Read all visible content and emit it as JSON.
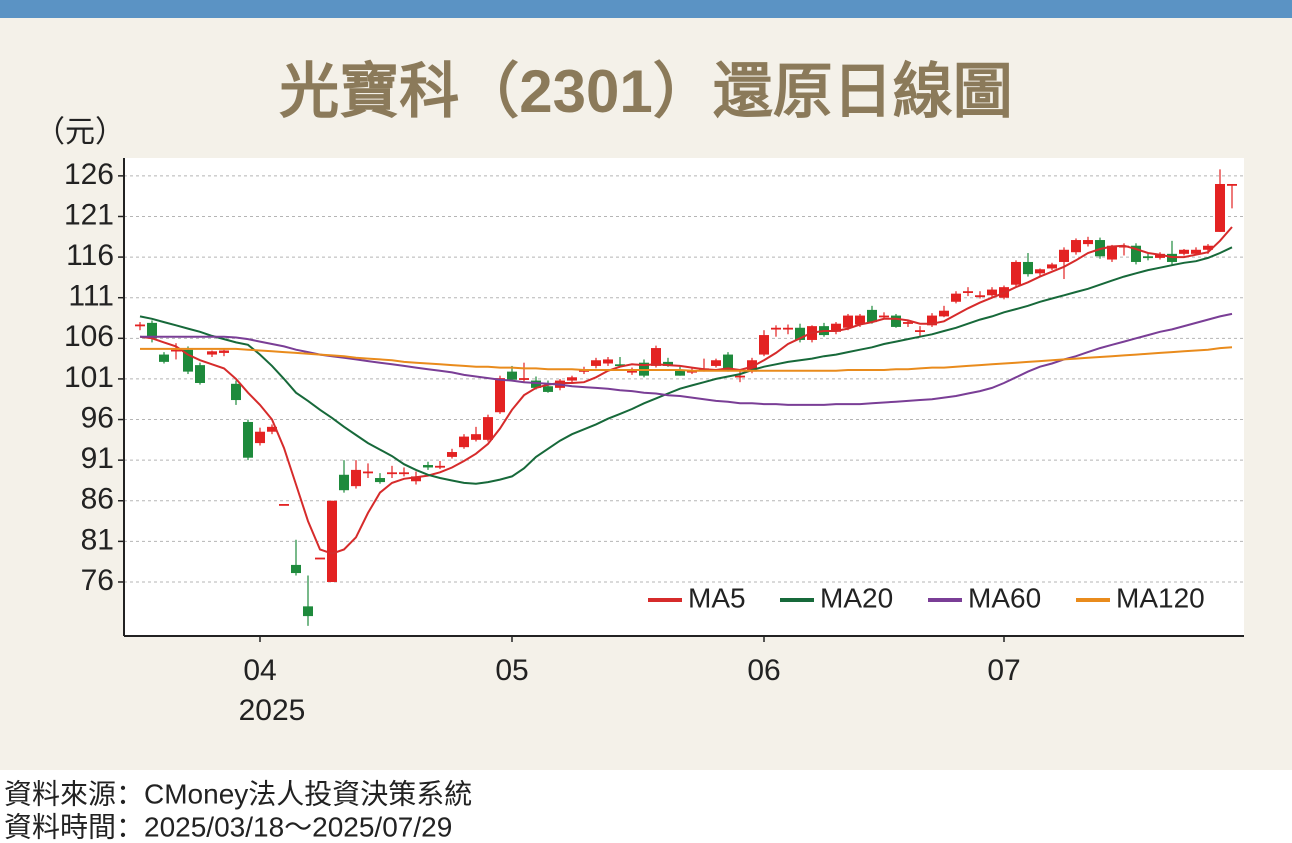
{
  "chart_data": {
    "type": "candlestick",
    "title": "光寶科（2301）還原日線圖",
    "y_label": "（元）",
    "year_label": "2025",
    "source": "資料來源：CMoney法人投資決策系統",
    "period": "資料時間：2025/03/18～2025/07/29",
    "categories": [
      null,
      null,
      null,
      null,
      null,
      null,
      null,
      null,
      null,
      null,
      "04",
      null,
      null,
      null,
      null,
      null,
      null,
      null,
      null,
      null,
      null,
      null,
      null,
      null,
      null,
      null,
      null,
      null,
      null,
      null,
      null,
      "05",
      null,
      null,
      null,
      null,
      null,
      null,
      null,
      null,
      null,
      null,
      null,
      null,
      null,
      null,
      null,
      null,
      null,
      null,
      null,
      null,
      "06",
      null,
      null,
      null,
      null,
      null,
      null,
      null,
      null,
      null,
      null,
      null,
      null,
      null,
      null,
      null,
      null,
      null,
      null,
      null,
      "07",
      null,
      null,
      null,
      null,
      null,
      null,
      null,
      null,
      null,
      null,
      null,
      null,
      null,
      null,
      null,
      null,
      null,
      null,
      null
    ],
    "open": [
      107.5,
      107.9,
      104.0,
      104.5,
      104.6,
      102.7,
      104.0,
      104.2,
      100.4,
      95.7,
      93.1,
      94.5,
      85.6,
      78.1,
      73.0,
      79.0,
      76.0,
      89.2,
      87.8,
      89.6,
      88.8,
      89.5,
      89.4,
      88.4,
      90.4,
      90.3,
      91.4,
      92.6,
      93.5,
      93.5,
      96.9,
      101.9,
      101.1,
      100.8,
      100.1,
      99.9,
      100.8,
      102.0,
      102.6,
      102.9,
      102.8,
      102.0,
      103.0,
      102.6,
      103.1,
      102.1,
      102.0,
      102.2,
      102.6,
      104.0,
      101.4,
      101.9,
      104.0,
      107.3,
      107.3,
      107.3,
      105.8,
      107.5,
      106.8,
      107.3,
      107.7,
      109.5,
      108.8,
      108.8,
      107.9,
      106.9,
      107.6,
      108.7,
      110.5,
      111.7,
      111.2,
      111.3,
      111.0,
      112.6,
      115.4,
      114.0,
      114.6,
      115.4,
      116.6,
      117.6,
      118.1,
      115.7,
      117.4,
      117.4,
      116.1,
      115.9,
      116.4,
      116.4,
      116.4,
      116.9,
      119.1,
      125.0
    ],
    "high": [
      108.0,
      108.2,
      104.3,
      105.4,
      105.0,
      103.0,
      104.5,
      104.6,
      100.8,
      96.0,
      95.0,
      95.4,
      85.6,
      81.2,
      76.8,
      79.0,
      86.0,
      91.0,
      91.0,
      90.6,
      89.4,
      90.3,
      90.1,
      89.6,
      90.8,
      90.9,
      92.4,
      94.2,
      95.1,
      96.6,
      101.4,
      102.6,
      103.0,
      101.3,
      100.8,
      101.0,
      101.4,
      102.5,
      103.6,
      103.7,
      103.7,
      102.4,
      103.4,
      105.1,
      103.6,
      102.5,
      102.4,
      103.5,
      103.5,
      104.3,
      102.2,
      103.6,
      107.0,
      107.6,
      107.7,
      107.8,
      107.6,
      107.9,
      108.0,
      109.0,
      109.0,
      110.0,
      109.2,
      109.0,
      108.2,
      107.5,
      109.1,
      110.0,
      111.8,
      112.3,
      111.8,
      112.3,
      112.5,
      115.6,
      116.5,
      114.6,
      115.3,
      117.2,
      118.3,
      118.5,
      118.4,
      117.5,
      117.7,
      117.7,
      116.5,
      116.6,
      118.0,
      117.0,
      117.2,
      117.6,
      126.8,
      125.0
    ],
    "low": [
      107.0,
      105.5,
      102.9,
      103.4,
      101.6,
      100.3,
      103.7,
      103.8,
      97.8,
      91.0,
      92.8,
      94.2,
      85.6,
      76.8,
      70.6,
      79.0,
      76.0,
      87.0,
      87.5,
      88.8,
      88.1,
      88.8,
      89.0,
      88.0,
      89.8,
      89.9,
      91.2,
      92.4,
      93.3,
      93.3,
      96.7,
      100.7,
      100.6,
      99.7,
      99.3,
      99.6,
      100.6,
      101.6,
      102.3,
      102.6,
      102.4,
      101.5,
      101.2,
      102.4,
      102.5,
      101.4,
      101.6,
      101.9,
      102.4,
      101.9,
      100.6,
      101.7,
      103.8,
      106.2,
      106.5,
      105.5,
      105.5,
      106.2,
      106.5,
      107.0,
      107.4,
      107.8,
      108.5,
      107.3,
      107.4,
      106.2,
      107.4,
      108.6,
      110.3,
      111.2,
      110.9,
      111.0,
      110.8,
      112.4,
      113.6,
      113.5,
      114.4,
      113.3,
      116.3,
      117.3,
      115.8,
      115.4,
      116.2,
      115.1,
      115.6,
      115.7,
      115.1,
      116.2,
      116.2,
      116.4,
      119.1,
      122.0
    ],
    "close": [
      107.7,
      106.0,
      103.1,
      104.6,
      101.9,
      100.5,
      104.4,
      104.5,
      98.4,
      91.3,
      94.5,
      95.1,
      85.6,
      77.1,
      71.8,
      79.0,
      86.0,
      87.3,
      89.8,
      89.6,
      88.3,
      89.5,
      89.5,
      89.0,
      90.1,
      90.3,
      92.0,
      93.9,
      94.2,
      96.3,
      101.1,
      100.9,
      101.1,
      99.9,
      99.4,
      100.8,
      101.2,
      102.1,
      103.3,
      103.4,
      102.6,
      102.0,
      101.4,
      104.8,
      102.6,
      101.4,
      102.0,
      102.3,
      103.3,
      102.1,
      101.4,
      103.3,
      106.4,
      107.3,
      107.3,
      105.8,
      107.5,
      106.4,
      107.8,
      108.8,
      108.8,
      108.0,
      108.8,
      107.4,
      108.0,
      107.0,
      108.8,
      109.4,
      111.5,
      111.8,
      111.3,
      112.0,
      112.3,
      115.4,
      113.9,
      114.5,
      115.1,
      116.9,
      118.1,
      118.1,
      116.1,
      117.4,
      117.4,
      115.4,
      115.9,
      116.4,
      115.4,
      116.9,
      116.9,
      117.4,
      125.0,
      125.0
    ],
    "up_color": "#e32222",
    "down_color": "#1e8a3c",
    "series": [
      {
        "name": "MA5",
        "color": "#d62b2b",
        "values": [
          106.2,
          106.0,
          105.5,
          105.0,
          104.0,
          103.3,
          102.8,
          102.3,
          101.0,
          99.3,
          97.8,
          96.0,
          92.5,
          88.0,
          83.5,
          80.0,
          79.5,
          80.0,
          81.5,
          84.5,
          87.0,
          88.2,
          88.7,
          88.9,
          89.1,
          89.5,
          90.1,
          90.9,
          91.8,
          93.0,
          94.9,
          97.2,
          99.0,
          99.9,
          100.3,
          100.5,
          100.5,
          100.6,
          101.2,
          102.0,
          102.5,
          102.8,
          102.7,
          102.8,
          102.7,
          102.6,
          102.4,
          102.2,
          102.1,
          102.3,
          102.1,
          102.5,
          103.3,
          104.2,
          105.3,
          106.0,
          106.7,
          106.9,
          106.9,
          107.2,
          107.7,
          108.0,
          108.4,
          108.4,
          108.2,
          107.8,
          107.8,
          108.1,
          108.9,
          109.7,
          110.4,
          111.0,
          111.6,
          112.3,
          112.9,
          113.6,
          114.2,
          114.8,
          115.6,
          116.5,
          117.0,
          117.3,
          117.4,
          117.0,
          116.5,
          116.3,
          116.0,
          116.0,
          116.3,
          116.6,
          118.0,
          119.7
        ]
      },
      {
        "name": "MA20",
        "color": "#17693a",
        "values": [
          108.7,
          108.4,
          108.0,
          107.6,
          107.2,
          106.8,
          106.3,
          105.9,
          105.5,
          105.2,
          104.0,
          102.6,
          101.0,
          99.3,
          98.3,
          97.2,
          96.2,
          95.1,
          94.1,
          93.1,
          92.3,
          91.5,
          90.5,
          89.8,
          89.2,
          88.8,
          88.5,
          88.2,
          88.1,
          88.3,
          88.6,
          89.0,
          90.0,
          91.4,
          92.4,
          93.4,
          94.2,
          94.8,
          95.4,
          96.1,
          96.7,
          97.3,
          98.0,
          98.6,
          99.2,
          99.8,
          100.2,
          100.6,
          101.0,
          101.3,
          101.6,
          102.1,
          102.5,
          102.8,
          103.1,
          103.3,
          103.5,
          103.8,
          104.0,
          104.3,
          104.6,
          104.9,
          105.3,
          105.6,
          105.9,
          106.2,
          106.5,
          106.9,
          107.3,
          107.8,
          108.3,
          108.7,
          109.2,
          109.6,
          110.0,
          110.5,
          110.9,
          111.3,
          111.7,
          112.1,
          112.6,
          113.1,
          113.6,
          114.0,
          114.4,
          114.7,
          115.0,
          115.3,
          115.5,
          115.9,
          116.5,
          117.2
        ]
      },
      {
        "name": "MA60",
        "color": "#7a3e96",
        "values": [
          106.2,
          106.2,
          106.2,
          106.2,
          106.2,
          106.2,
          106.2,
          106.2,
          106.1,
          105.9,
          105.6,
          105.3,
          105.0,
          104.6,
          104.3,
          104.0,
          103.8,
          103.6,
          103.4,
          103.2,
          103.0,
          102.8,
          102.6,
          102.4,
          102.2,
          102.0,
          101.8,
          101.5,
          101.3,
          101.1,
          100.9,
          100.8,
          100.6,
          100.5,
          100.4,
          100.3,
          100.1,
          100.0,
          99.9,
          99.8,
          99.6,
          99.5,
          99.3,
          99.2,
          99.0,
          98.9,
          98.7,
          98.5,
          98.3,
          98.2,
          98.0,
          98.0,
          97.9,
          97.9,
          97.8,
          97.8,
          97.8,
          97.8,
          97.9,
          97.9,
          97.9,
          98.0,
          98.1,
          98.2,
          98.3,
          98.4,
          98.5,
          98.7,
          98.9,
          99.2,
          99.5,
          99.9,
          100.5,
          101.2,
          101.9,
          102.5,
          102.9,
          103.4,
          103.8,
          104.3,
          104.8,
          105.2,
          105.6,
          106.0,
          106.4,
          106.8,
          107.1,
          107.5,
          107.9,
          108.3,
          108.7,
          109.0
        ]
      },
      {
        "name": "MA120",
        "color": "#e98b1c",
        "values": [
          104.7,
          104.7,
          104.7,
          104.7,
          104.7,
          104.7,
          104.7,
          104.7,
          104.7,
          104.6,
          104.5,
          104.4,
          104.3,
          104.2,
          104.1,
          104.0,
          103.9,
          103.8,
          103.6,
          103.5,
          103.4,
          103.3,
          103.1,
          103.0,
          102.9,
          102.8,
          102.7,
          102.6,
          102.5,
          102.5,
          102.4,
          102.4,
          102.3,
          102.3,
          102.2,
          102.2,
          102.2,
          102.1,
          102.1,
          102.1,
          102.1,
          102.1,
          102.1,
          102.1,
          102.1,
          102.1,
          102.0,
          102.0,
          102.0,
          102.0,
          102.0,
          102.0,
          102.0,
          102.0,
          102.0,
          102.0,
          102.0,
          102.0,
          102.0,
          102.1,
          102.1,
          102.1,
          102.1,
          102.2,
          102.2,
          102.3,
          102.4,
          102.4,
          102.5,
          102.6,
          102.7,
          102.8,
          102.9,
          103.0,
          103.1,
          103.2,
          103.3,
          103.4,
          103.5,
          103.6,
          103.7,
          103.8,
          103.9,
          104.0,
          104.1,
          104.2,
          104.3,
          104.4,
          104.5,
          104.6,
          104.8,
          104.9
        ]
      }
    ],
    "ylim": [
      69.35,
      128.2
    ],
    "yticks": [
      76,
      81,
      86,
      91,
      96,
      101,
      106,
      111,
      116,
      121,
      126
    ],
    "grid": true,
    "legend": "lower right"
  }
}
